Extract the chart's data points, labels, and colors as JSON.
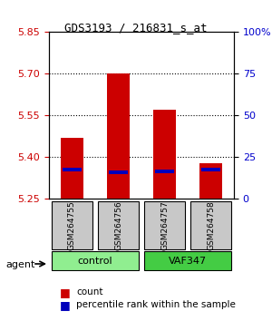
{
  "title": "GDS3193 / 216831_s_at",
  "samples": [
    "GSM264755",
    "GSM264756",
    "GSM264757",
    "GSM264758"
  ],
  "groups": [
    "control",
    "control",
    "VAF347",
    "VAF347"
  ],
  "group_labels": [
    "control",
    "VAF347"
  ],
  "group_colors": [
    "#90EE90",
    "#00CC00"
  ],
  "bar_bottom": 5.25,
  "bar_tops": [
    5.47,
    5.7,
    5.57,
    5.38
  ],
  "percentile_values": [
    5.355,
    5.345,
    5.35,
    5.355
  ],
  "ylim_left": [
    5.25,
    5.85
  ],
  "ylim_right": [
    0,
    100
  ],
  "yticks_left": [
    5.25,
    5.4,
    5.55,
    5.7,
    5.85
  ],
  "yticks_right": [
    0,
    25,
    50,
    75,
    100
  ],
  "ytick_labels_right": [
    "0",
    "25",
    "50",
    "75",
    "100%"
  ],
  "left_color": "#CC0000",
  "right_color": "#0000CC",
  "bar_color": "#CC0000",
  "pct_color": "#0000BB",
  "bg_color": "#FFFFFF",
  "xlabel_area_color": "#C8C8C8",
  "group_area_color_control": "#90EE90",
  "group_area_color_vaf": "#00CC44",
  "agent_label": "agent",
  "legend_count_label": "count",
  "legend_pct_label": "percentile rank within the sample"
}
